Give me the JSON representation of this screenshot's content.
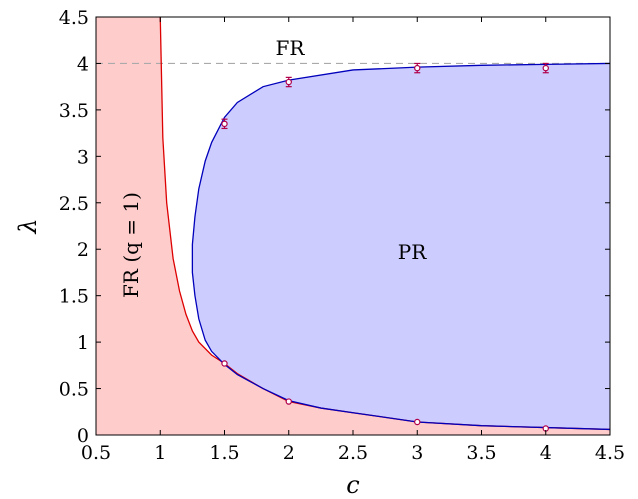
{
  "chart_data": {
    "type": "area",
    "xlabel": "c",
    "ylabel": "λ",
    "xlim": [
      0.5,
      4.5
    ],
    "ylim": [
      0,
      4.5
    ],
    "xticks": [
      "0.5",
      "1",
      "1.5",
      "2",
      "2.5",
      "3",
      "3.5",
      "4",
      "4.5"
    ],
    "yticks": [
      "0",
      "0.5",
      "1",
      "1.5",
      "2",
      "2.5",
      "3",
      "3.5",
      "4",
      "4.5"
    ],
    "grid": false,
    "reference_line": {
      "y": 4,
      "style": "dashed",
      "color": "#aaaaaa"
    },
    "regions": [
      {
        "label": "FR (q = 1)",
        "color": "#ffcccc",
        "edge_color": "#dd0000"
      },
      {
        "label": "PR",
        "color": "#ccccff",
        "edge_color": "#0000bb"
      },
      {
        "label": "FR"
      }
    ],
    "boundary_curves": {
      "red": {
        "x": [
          1.0,
          1.02,
          1.05,
          1.1,
          1.15,
          1.2,
          1.25,
          1.3,
          1.4,
          1.5,
          1.6,
          1.8,
          2.0,
          2.25,
          2.5,
          3.0,
          3.5,
          4.0,
          4.5
        ],
        "y": [
          4.5,
          3.2,
          2.5,
          1.9,
          1.55,
          1.3,
          1.12,
          1.0,
          0.86,
          0.77,
          0.66,
          0.5,
          0.36,
          0.29,
          0.24,
          0.14,
          0.1,
          0.08,
          0.06
        ]
      },
      "blue": {
        "x": [
          4.5,
          4.0,
          3.5,
          3.0,
          2.5,
          2.0,
          1.8,
          1.6,
          1.5,
          1.4,
          1.35,
          1.3,
          1.27,
          1.25,
          1.25,
          1.27,
          1.3,
          1.35,
          1.4,
          1.5,
          1.6,
          1.8,
          2.0,
          2.25,
          2.5,
          3.0,
          3.5,
          4.0,
          4.5
        ],
        "y": [
          4.0,
          3.99,
          3.98,
          3.96,
          3.93,
          3.82,
          3.75,
          3.58,
          3.42,
          3.15,
          2.95,
          2.65,
          2.35,
          2.05,
          1.75,
          1.5,
          1.25,
          1.02,
          0.9,
          0.76,
          0.65,
          0.5,
          0.37,
          0.29,
          0.24,
          0.14,
          0.1,
          0.08,
          0.06
        ]
      }
    },
    "markers": [
      {
        "x": 1.5,
        "y": 3.35,
        "err": 0.05
      },
      {
        "x": 2.0,
        "y": 3.8,
        "err": 0.05
      },
      {
        "x": 3.0,
        "y": 3.95,
        "err": 0.05
      },
      {
        "x": 4.0,
        "y": 3.95,
        "err": 0.05
      },
      {
        "x": 1.5,
        "y": 0.77,
        "err": 0
      },
      {
        "x": 2.0,
        "y": 0.36,
        "err": 0
      },
      {
        "x": 3.0,
        "y": 0.14,
        "err": 0
      },
      {
        "x": 4.0,
        "y": 0.07,
        "err": 0
      }
    ],
    "marker_color": "#b0004a"
  }
}
